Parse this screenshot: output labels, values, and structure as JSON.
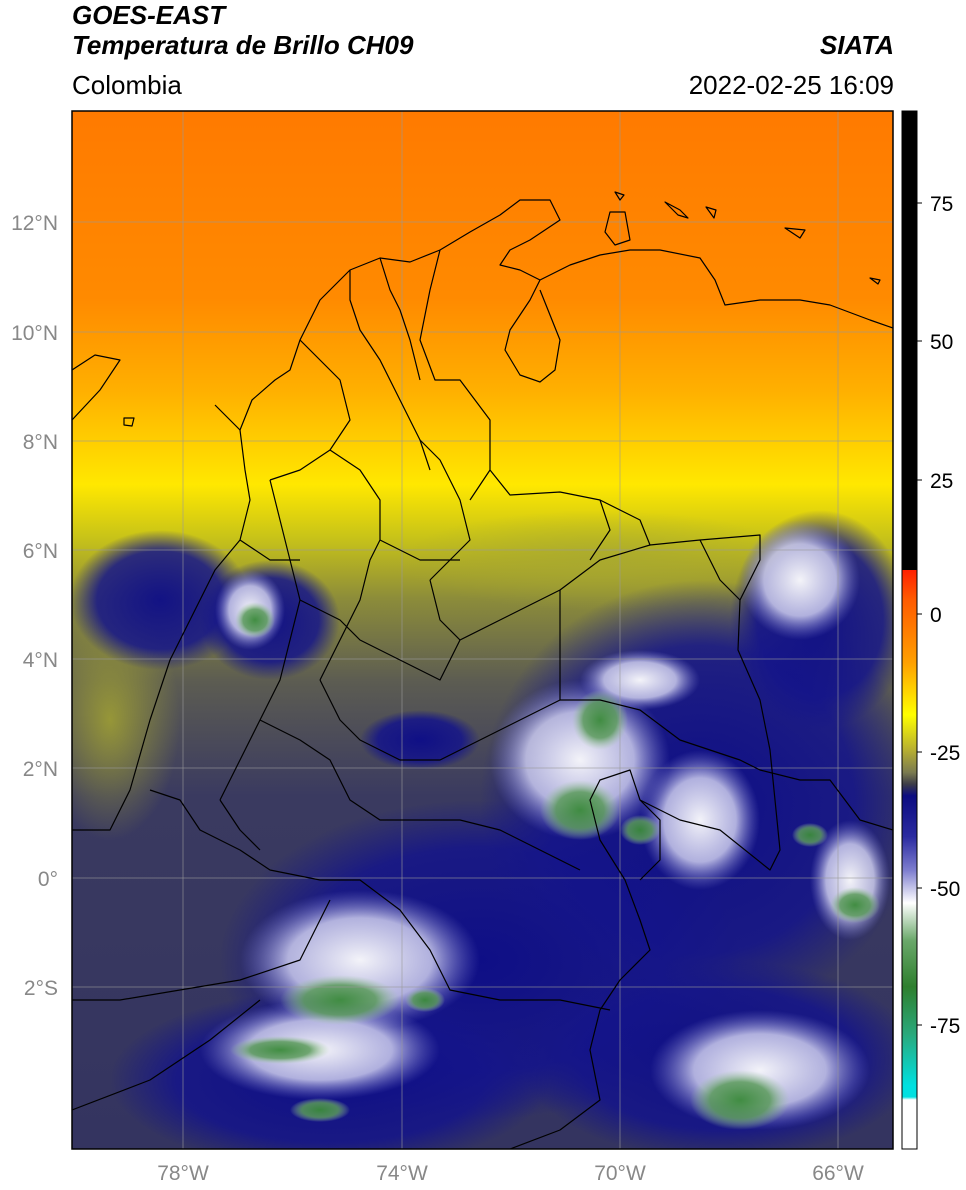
{
  "header": {
    "satellite": "GOES-EAST",
    "product": "Temperatura de Brillo CH09",
    "region": "Colombia",
    "agency": "SIATA",
    "datetime": "2022-02-25 16:09"
  },
  "axes": {
    "lat_ticks": [
      "12°N",
      "10°N",
      "8°N",
      "6°N",
      "4°N",
      "2°N",
      "0°",
      "2°S"
    ],
    "lon_ticks": [
      "78°W",
      "74°W",
      "70°W",
      "66°W"
    ]
  },
  "colorbar": {
    "ticks": [
      "75",
      "50",
      "25",
      "0",
      "-25",
      "-50",
      "-75"
    ],
    "colors": {
      "top": "#000000",
      "red": "#e8140a",
      "orange": "#ff8c00",
      "yellow": "#ffff00",
      "olive": "#9a9a30",
      "gray": "#4a4a58",
      "navy": "#101080",
      "white": "#ffffff",
      "green": "#2e8a2e",
      "cyan": "#00e0e0"
    }
  }
}
